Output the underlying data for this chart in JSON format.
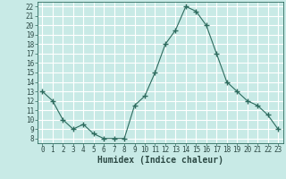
{
  "x": [
    0,
    1,
    2,
    3,
    4,
    5,
    6,
    7,
    8,
    9,
    10,
    11,
    12,
    13,
    14,
    15,
    16,
    17,
    18,
    19,
    20,
    21,
    22,
    23
  ],
  "y": [
    13,
    12,
    10,
    9,
    9.5,
    8.5,
    8,
    8,
    8,
    11.5,
    12.5,
    15,
    18,
    19.5,
    22,
    21.5,
    20,
    17,
    14,
    13,
    12,
    11.5,
    10.5,
    9
  ],
  "xlim": [
    -0.5,
    23.5
  ],
  "ylim": [
    7.5,
    22.5
  ],
  "yticks": [
    8,
    9,
    10,
    11,
    12,
    13,
    14,
    15,
    16,
    17,
    18,
    19,
    20,
    21,
    22
  ],
  "xticks": [
    0,
    1,
    2,
    3,
    4,
    5,
    6,
    7,
    8,
    9,
    10,
    11,
    12,
    13,
    14,
    15,
    16,
    17,
    18,
    19,
    20,
    21,
    22,
    23
  ],
  "xlabel": "Humidex (Indice chaleur)",
  "line_color": "#2d6b5e",
  "marker": "+",
  "marker_size": 4.0,
  "background_color": "#c8eae6",
  "grid_color": "#ffffff",
  "grid_minor_color": "#e8c8c8",
  "axes_color": "#2d6b5e",
  "tick_label_color": "#2d4a45",
  "xlabel_fontsize": 7,
  "tick_fontsize": 5.5
}
